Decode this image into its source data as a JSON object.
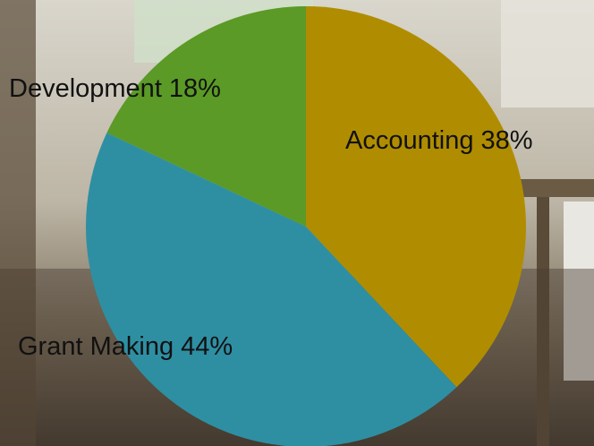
{
  "chart_data": {
    "type": "pie",
    "categories": [
      "Accounting",
      "Grant Making",
      "Development"
    ],
    "values": [
      38,
      44,
      18
    ],
    "value_labels": [
      "38%",
      "44%",
      "18%"
    ],
    "colors": [
      "#b08d00",
      "#2e8fa3",
      "#5b9a26"
    ]
  }
}
